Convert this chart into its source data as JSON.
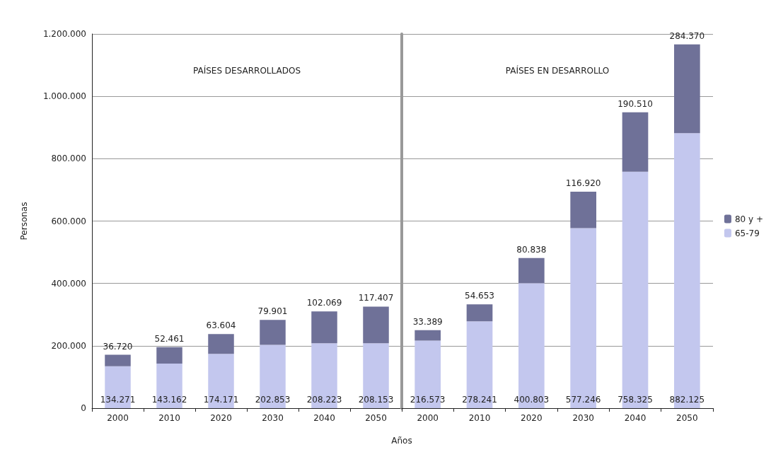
{
  "chart_data": [
    {
      "type": "bar",
      "stacked": true,
      "title": "PAÍSES DESARROLLADOS",
      "xlabel": "Años",
      "ylabel": "Personas",
      "categories": [
        "2000",
        "2010",
        "2020",
        "2030",
        "2040",
        "2050"
      ],
      "series": [
        {
          "color": "#c3c7ee",
          "values": [
            134271,
            143162,
            174171,
            202853,
            208223,
            208153
          ],
          "value_labels": [
            "134.271",
            "143.162",
            "174.171",
            "202.853",
            "208.223",
            "208.153"
          ]
        },
        {
          "color": "#6f7198",
          "values": [
            36720,
            52461,
            63604,
            79901,
            102069,
            117407
          ],
          "value_labels": [
            "36.720",
            "52.461",
            "63.604",
            "79.901",
            "102.069",
            "117.407"
          ]
        }
      ],
      "ylim": [
        0,
        1200000
      ],
      "yticks": [
        0,
        {
          "value": 200000,
          "label": "200.000"
        },
        {
          "value": 400000,
          "label": "400.000"
        },
        {
          "value": 600000,
          "label": "600.000"
        },
        {
          "value": 800000,
          "label": "800.000"
        },
        {
          "value": 1000000,
          "label": "1.000.000"
        },
        {
          "value": 1200000,
          "label": "1.200.000"
        }
      ],
      "grid": "y"
    },
    {
      "type": "bar",
      "stacked": true,
      "title": "PAÍSES EN DESARROLLO",
      "categories": [
        "2000",
        "2010",
        "2020",
        "2030",
        "2040",
        "2050"
      ],
      "series": [
        {
          "name": "65-79",
          "color": "#c3c7ee",
          "values": [
            216573,
            278241,
            400803,
            577246,
            758325,
            882125
          ],
          "value_labels": [
            "216.573",
            "278.241",
            "400.803",
            "577.246",
            "758.325",
            "882.125"
          ]
        },
        {
          "name": "80 y +",
          "color": "#6f7198",
          "values": [
            33389,
            54653,
            80838,
            116920,
            190510,
            284370
          ],
          "value_labels": [
            "33.389",
            "54.653",
            "80.838",
            "116.920",
            "190.510",
            "284.370"
          ]
        }
      ],
      "ylim": [
        0,
        1200000
      ],
      "yticks": [
        0,
        200000,
        400000,
        600000,
        800000,
        1000000,
        1200000
      ],
      "grid": "y",
      "legend": "right",
      "tick_labels": "x"
    }
  ]
}
